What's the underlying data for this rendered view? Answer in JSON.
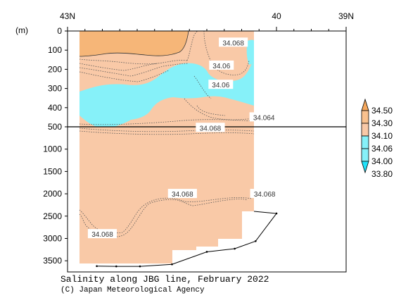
{
  "chart_data": {
    "type": "heatmap",
    "title": "Salinity along JBG line, February 2022",
    "credit": "(C) Japan Meteorological Agency",
    "y_unit": "(m)",
    "x_ticks": [
      {
        "lat": 43,
        "label": "43N"
      },
      {
        "lat": 40,
        "label": "40"
      },
      {
        "lat": 39,
        "label": "39N"
      }
    ],
    "y_ticks_upper": [
      0,
      100,
      200,
      300,
      400,
      500
    ],
    "y_ticks_lower": [
      1000,
      1500,
      2000,
      2500,
      3000,
      3500
    ],
    "xlim": [
      43,
      39
    ],
    "ylim": [
      0,
      3750
    ],
    "axis_break_depth": 500,
    "colorbar": {
      "levels": [
        "34.50",
        "34.30",
        "34.10",
        "34.06",
        "34.00",
        "33.80"
      ],
      "colors": [
        "#f6a85c",
        "#f9c18e",
        "#f9c9a7",
        "#86f1f9",
        "#21e3fb"
      ]
    },
    "contour_labels": [
      {
        "text": "34.068",
        "lat": 40.62,
        "depth": 60
      },
      {
        "text": "34.06",
        "lat": 40.79,
        "depth": 180
      },
      {
        "text": "34.06",
        "lat": 40.8,
        "depth": 280
      },
      {
        "text": "34.064",
        "lat": 40.18,
        "depth": 450
      },
      {
        "text": "34.068",
        "lat": 40.95,
        "depth": 520
      },
      {
        "text": "34.068",
        "lat": 41.35,
        "depth": 2000
      },
      {
        "text": "34.068",
        "lat": 40.17,
        "depth": 2000
      },
      {
        "text": "34.068",
        "lat": 42.5,
        "depth": 2900
      }
    ],
    "station_bottoms": [
      {
        "lat": 42.58,
        "depth": 3620
      },
      {
        "lat": 42.3,
        "depth": 3625
      },
      {
        "lat": 41.96,
        "depth": 3625
      },
      {
        "lat": 41.5,
        "depth": 3580
      },
      {
        "lat": 41.0,
        "depth": 3300
      },
      {
        "lat": 40.6,
        "depth": 3230
      },
      {
        "lat": 40.3,
        "depth": 3060
      },
      {
        "lat": 40.0,
        "depth": 2440
      }
    ]
  }
}
